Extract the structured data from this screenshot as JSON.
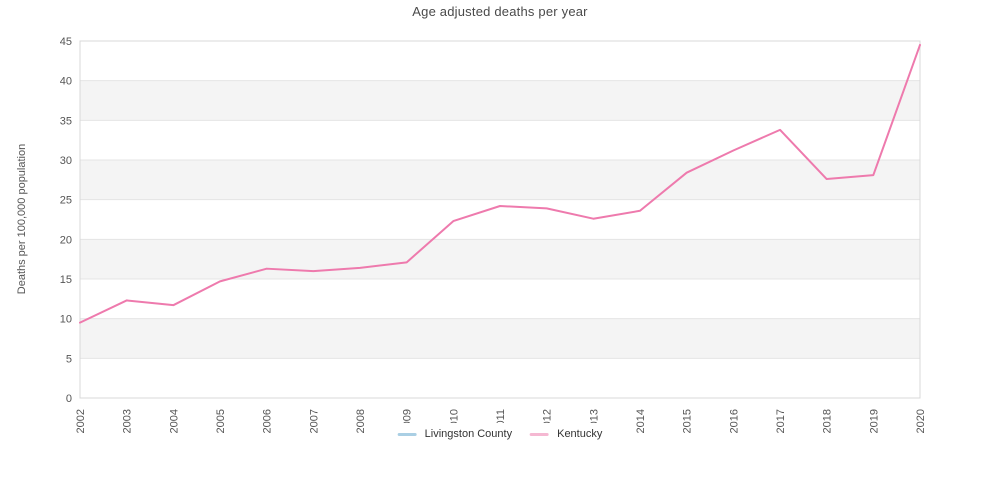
{
  "title": "Age adjusted deaths per year",
  "y_axis": {
    "label": "Deaths per 100,000 population",
    "ticks": [
      0,
      5,
      10,
      15,
      20,
      25,
      30,
      35,
      40,
      45
    ]
  },
  "legend": {
    "items": [
      {
        "label": "Livingston County",
        "swatch_color": "#aacfe4"
      },
      {
        "label": "Kentucky",
        "swatch_color": "#f5b8d2"
      }
    ]
  },
  "chart_data": {
    "type": "line",
    "title": "Age adjusted deaths per year",
    "xlabel": "",
    "ylabel": "Deaths per 100,000 population",
    "x": [
      "2002",
      "2003",
      "2004",
      "2005",
      "2006",
      "2007",
      "2008",
      "2009",
      "2010",
      "2011",
      "2012",
      "2013",
      "2014",
      "2015",
      "2016",
      "2017",
      "2018",
      "2019",
      "2020"
    ],
    "series": [
      {
        "name": "Livingston County",
        "color": "#aacfe4",
        "values": []
      },
      {
        "name": "Kentucky",
        "color": "#ee7aad",
        "values": [
          9.5,
          12.3,
          11.7,
          14.7,
          16.3,
          16.0,
          16.4,
          17.1,
          22.3,
          24.2,
          23.9,
          22.6,
          23.6,
          28.4,
          31.2,
          33.8,
          27.6,
          28.1,
          44.5
        ]
      }
    ],
    "ylim": [
      0,
      45
    ],
    "grid": "horizontal",
    "band_color": "#f4f4f4",
    "gridline_color": "#e4e4e4",
    "border_color": "#d8d8d8",
    "tick_label_color": "#555555",
    "legend_position": "bottom-center"
  }
}
